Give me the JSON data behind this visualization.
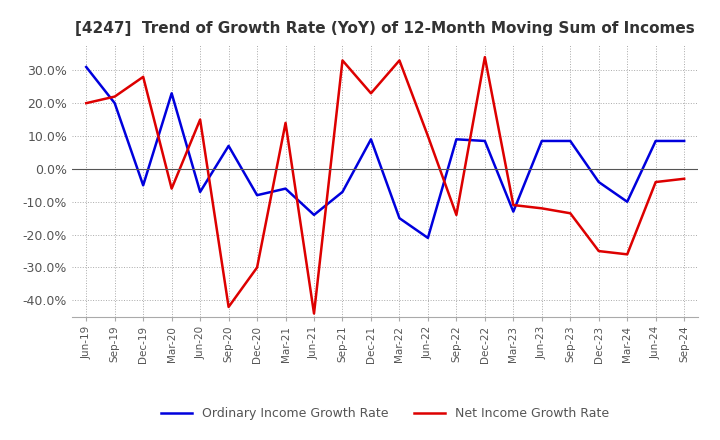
{
  "title": "[4247]  Trend of Growth Rate (YoY) of 12-Month Moving Sum of Incomes",
  "title_fontsize": 11,
  "title_color": "#333333",
  "background_color": "#ffffff",
  "ylim": [
    -45,
    38
  ],
  "yticks": [
    -40,
    -30,
    -20,
    -10,
    0,
    10,
    20,
    30
  ],
  "ytick_labels": [
    "-40.0%",
    "-30.0%",
    "-20.0%",
    "-10.0%",
    "0.0%",
    "10.0%",
    "20.0%",
    "30.0%"
  ],
  "x_labels": [
    "Jun-19",
    "Sep-19",
    "Dec-19",
    "Mar-20",
    "Jun-20",
    "Sep-20",
    "Dec-20",
    "Mar-21",
    "Jun-21",
    "Sep-21",
    "Dec-21",
    "Mar-22",
    "Jun-22",
    "Sep-22",
    "Dec-22",
    "Mar-23",
    "Jun-23",
    "Sep-23",
    "Dec-23",
    "Mar-24",
    "Jun-24",
    "Sep-24"
  ],
  "ordinary_income": [
    31.0,
    20.0,
    -5.0,
    23.0,
    -7.0,
    7.0,
    -8.0,
    -6.0,
    -14.0,
    -7.0,
    9.0,
    -15.0,
    -21.0,
    9.0,
    8.5,
    -13.0,
    8.5,
    8.5,
    -4.0,
    -10.0,
    8.5,
    8.5
  ],
  "net_income": [
    20.0,
    22.0,
    28.0,
    -6.0,
    15.0,
    -42.0,
    -30.0,
    14.0,
    -44.0,
    33.0,
    23.0,
    33.0,
    10.0,
    -14.0,
    34.0,
    -11.0,
    -12.0,
    -13.5,
    -25.0,
    -26.0,
    -4.0,
    -3.0
  ],
  "ordinary_color": "#0000dd",
  "net_color": "#dd0000",
  "line_width": 1.8,
  "legend_ordinary": "Ordinary Income Growth Rate",
  "legend_net": "Net Income Growth Rate",
  "grid_color": "#aaaaaa",
  "grid_style": ":",
  "zero_line_color": "#555555"
}
